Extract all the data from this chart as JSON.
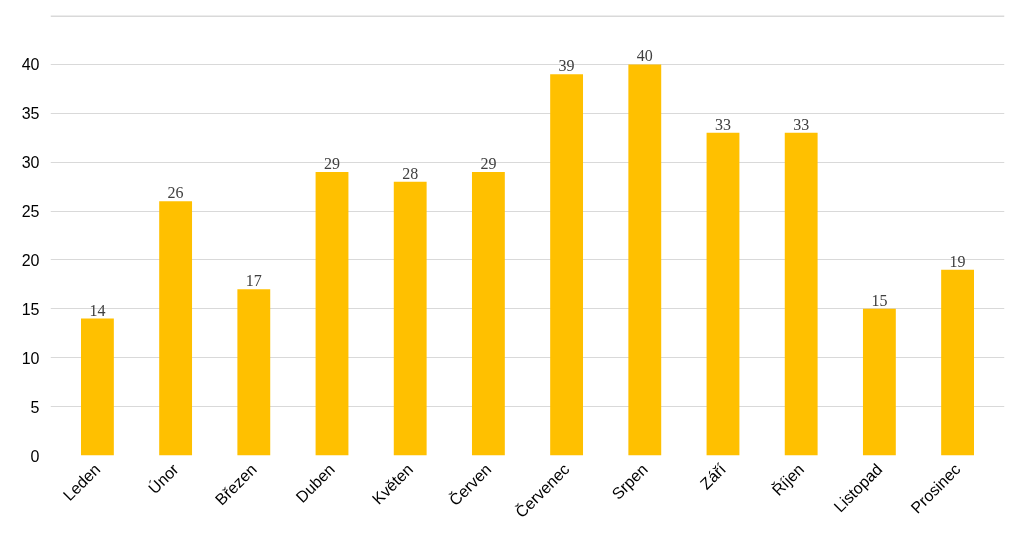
{
  "chart_data": {
    "type": "bar",
    "categories": [
      "Leden",
      "Únor",
      "Březen",
      "Duben",
      "Květen",
      "Červen",
      "Červenec",
      "Srpen",
      "Září",
      "Říjen",
      "Listopad",
      "Prosinec"
    ],
    "values": [
      14,
      26,
      17,
      29,
      28,
      29,
      39,
      40,
      33,
      33,
      15,
      19
    ],
    "color": "#ffc000",
    "ylim": [
      0,
      45
    ],
    "yticks": [
      0,
      5,
      10,
      15,
      20,
      25,
      30,
      35,
      40,
      {
        "value": 45,
        "label": null
      }
    ],
    "grid": "y",
    "data_labels": true
  }
}
